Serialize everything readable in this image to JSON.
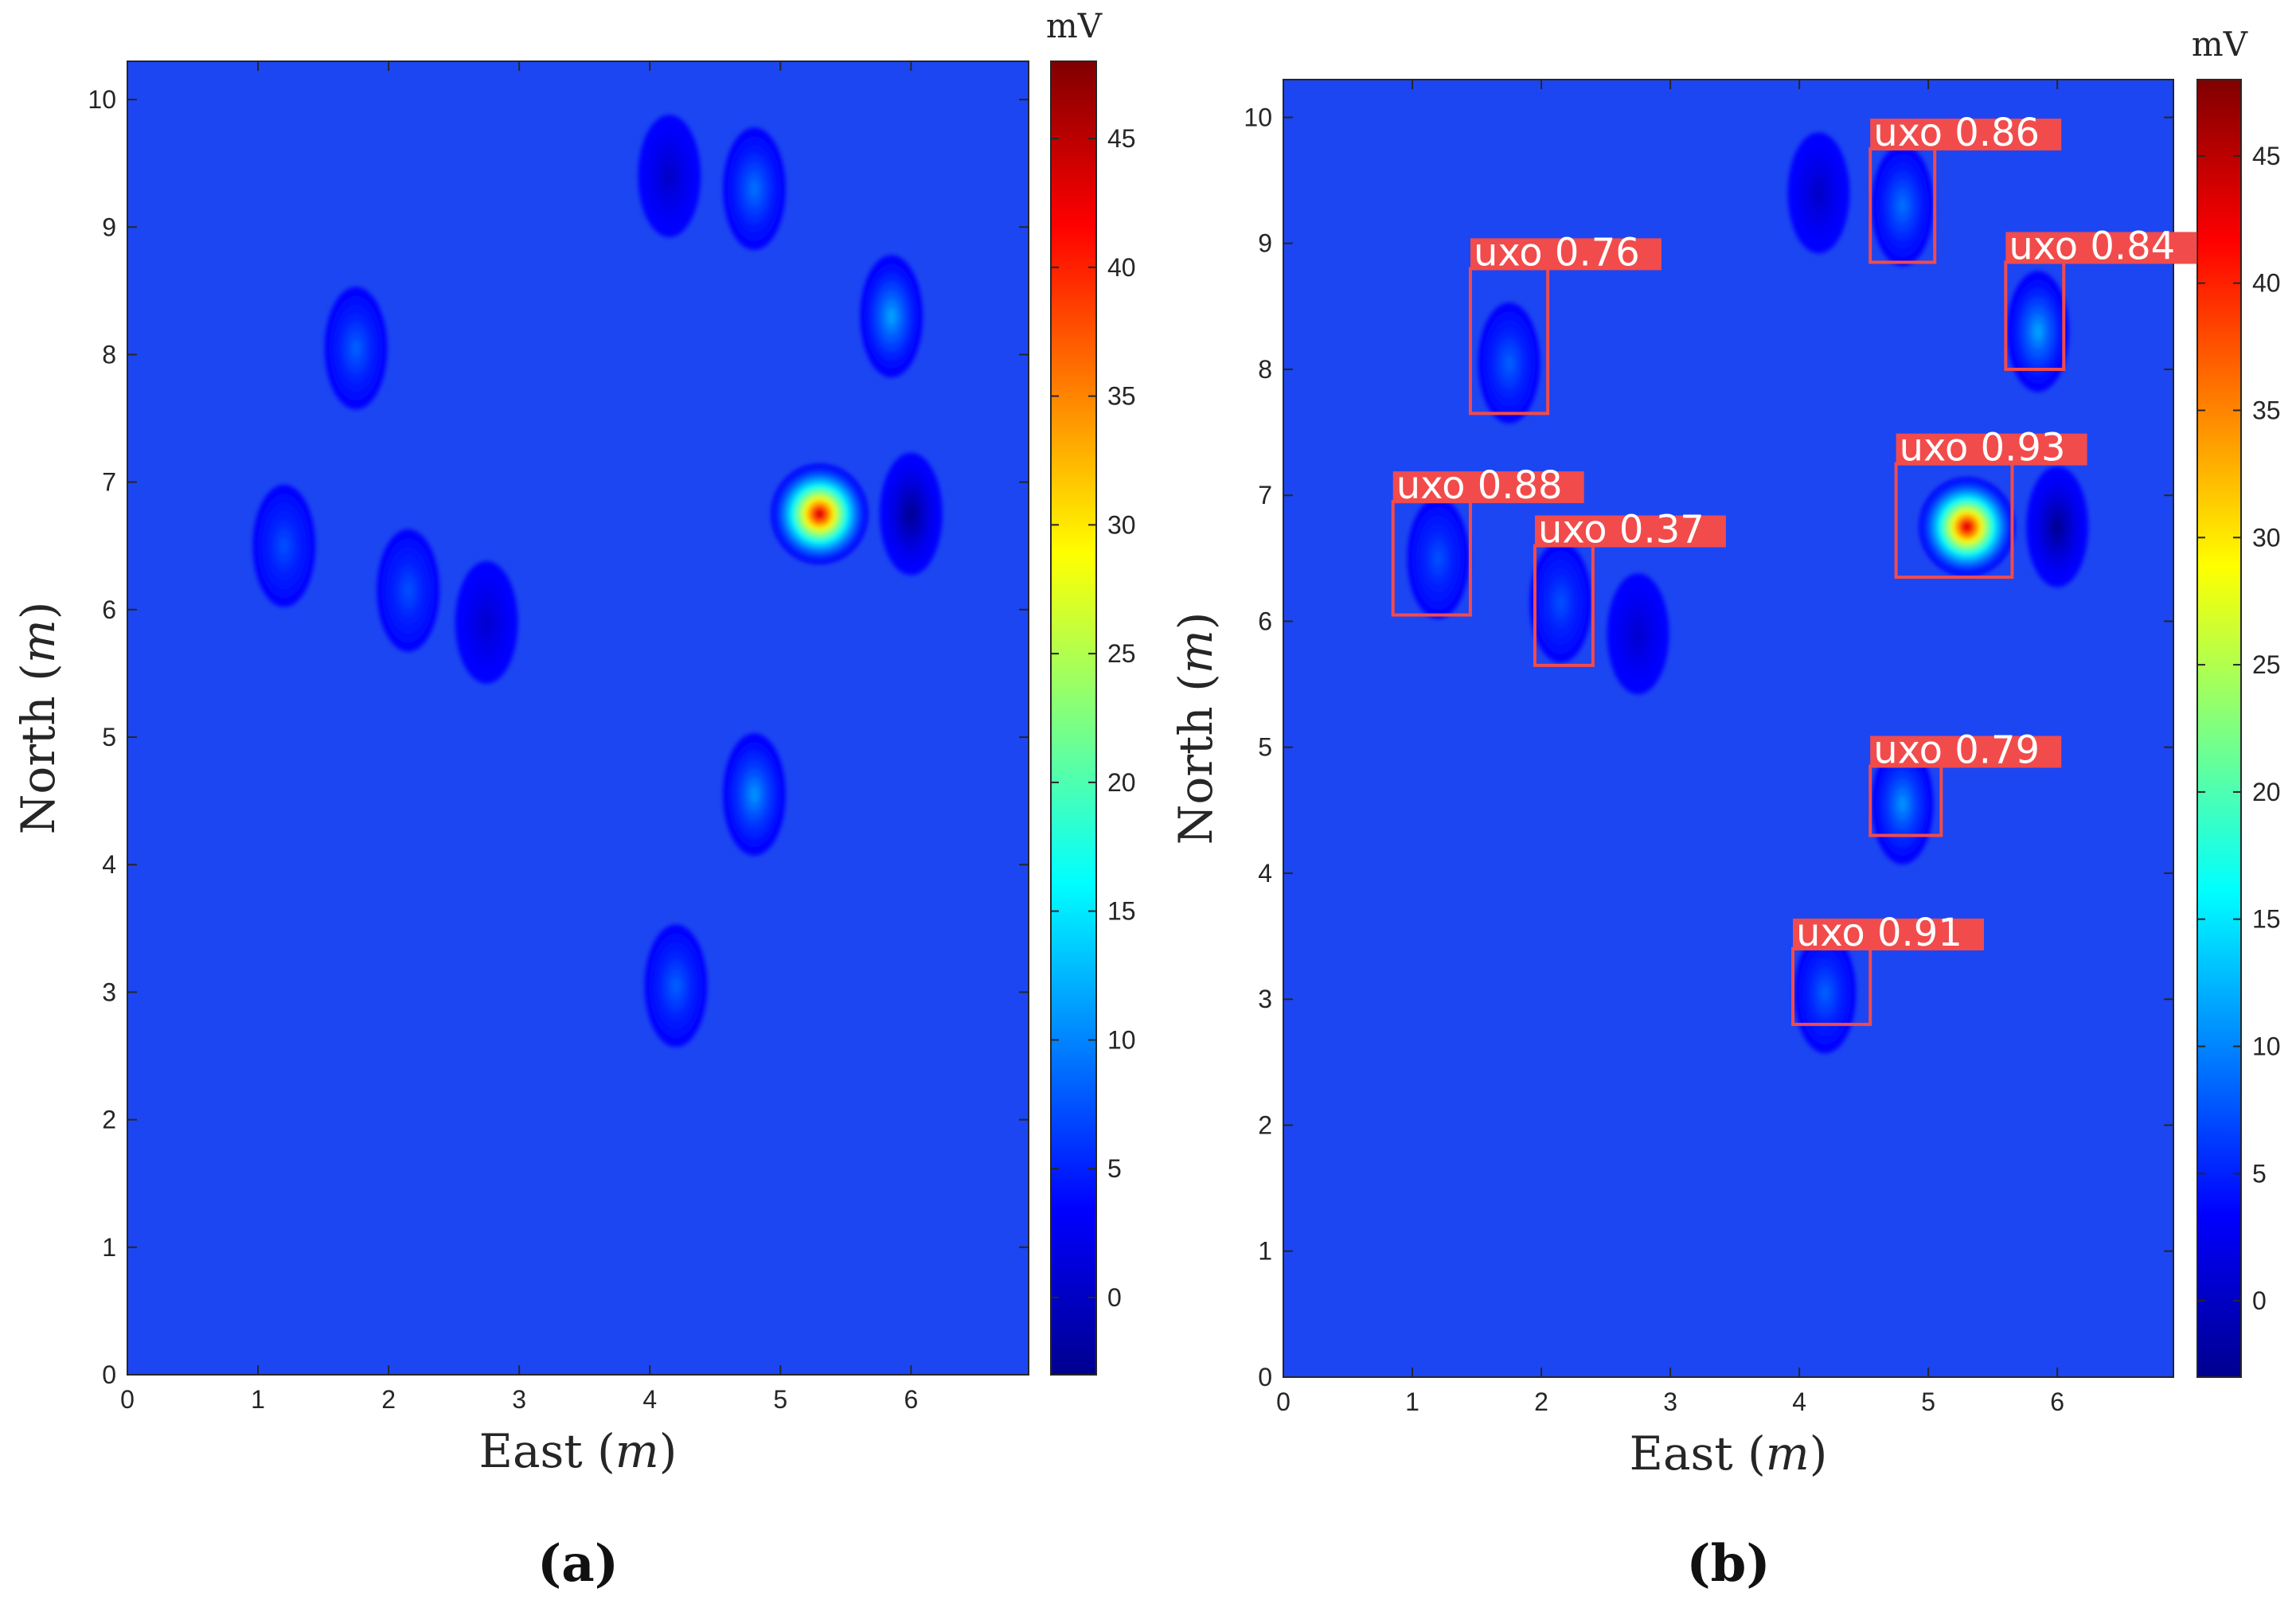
{
  "chart_data": [
    {
      "type": "heatmap",
      "panel_label": "(a)",
      "xlabel": "East",
      "xlabel_unit": "m",
      "ylabel": "North",
      "ylabel_unit": "m",
      "xlim": [
        0,
        6.9
      ],
      "ylim": [
        0,
        10.3
      ],
      "xticks": [
        "0",
        "1",
        "2",
        "3",
        "4",
        "5",
        "6"
      ],
      "yticks": [
        "0",
        "1",
        "2",
        "3",
        "4",
        "5",
        "6",
        "7",
        "8",
        "9",
        "10"
      ],
      "colorbar": {
        "label": "mV",
        "range": [
          -3,
          48
        ],
        "ticks": [
          "0",
          "5",
          "10",
          "15",
          "20",
          "25",
          "30",
          "35",
          "40",
          "45"
        ]
      },
      "background_value_mV": 3.5,
      "anomalies": [
        {
          "x": 5.3,
          "y": 6.75,
          "peak_mV": 48
        },
        {
          "x": 5.85,
          "y": 8.3,
          "peak_mV": 13
        },
        {
          "x": 4.8,
          "y": 9.3,
          "peak_mV": 10
        },
        {
          "x": 4.8,
          "y": 4.55,
          "peak_mV": 12
        },
        {
          "x": 4.2,
          "y": 3.05,
          "peak_mV": 9
        },
        {
          "x": 1.75,
          "y": 8.05,
          "peak_mV": 9
        },
        {
          "x": 1.2,
          "y": 6.5,
          "peak_mV": 8
        },
        {
          "x": 2.15,
          "y": 6.15,
          "peak_mV": 8
        },
        {
          "x": 6.0,
          "y": 6.75,
          "peak_mV": -3
        },
        {
          "x": 4.15,
          "y": 9.4,
          "peak_mV": 0
        },
        {
          "x": 2.75,
          "y": 5.9,
          "peak_mV": 0.5
        }
      ]
    },
    {
      "type": "heatmap",
      "panel_label": "(b)",
      "xlabel": "East",
      "xlabel_unit": "m",
      "ylabel": "North",
      "ylabel_unit": "m",
      "xlim": [
        0,
        6.9
      ],
      "ylim": [
        0,
        10.3
      ],
      "xticks": [
        "0",
        "1",
        "2",
        "3",
        "4",
        "5",
        "6"
      ],
      "yticks": [
        "0",
        "1",
        "2",
        "3",
        "4",
        "5",
        "6",
        "7",
        "8",
        "9",
        "10"
      ],
      "colorbar": {
        "label": "mV",
        "range": [
          -3,
          48
        ],
        "ticks": [
          "0",
          "5",
          "10",
          "15",
          "20",
          "25",
          "30",
          "35",
          "40",
          "45"
        ]
      },
      "detections": [
        {
          "label": "uxo 0.86",
          "x0": 4.55,
          "x1": 5.05,
          "y0": 8.85,
          "y1": 9.75
        },
        {
          "label": "uxo 0.76",
          "x0": 1.45,
          "x1": 2.05,
          "y0": 7.65,
          "y1": 8.8
        },
        {
          "label": "uxo 0.84",
          "x0": 5.6,
          "x1": 6.05,
          "y0": 8.0,
          "y1": 8.85
        },
        {
          "label": "uxo 0.93",
          "x0": 4.75,
          "x1": 5.65,
          "y0": 6.35,
          "y1": 7.25
        },
        {
          "label": "uxo 0.88",
          "x0": 0.85,
          "x1": 1.45,
          "y0": 6.05,
          "y1": 6.95
        },
        {
          "label": "uxo 0.37",
          "x0": 1.95,
          "x1": 2.4,
          "y0": 5.65,
          "y1": 6.6
        },
        {
          "label": "uxo 0.79",
          "x0": 4.55,
          "x1": 5.1,
          "y0": 4.3,
          "y1": 4.85
        },
        {
          "label": "uxo 0.91",
          "x0": 3.95,
          "x1": 4.55,
          "y0": 2.8,
          "y1": 3.4
        }
      ]
    }
  ]
}
